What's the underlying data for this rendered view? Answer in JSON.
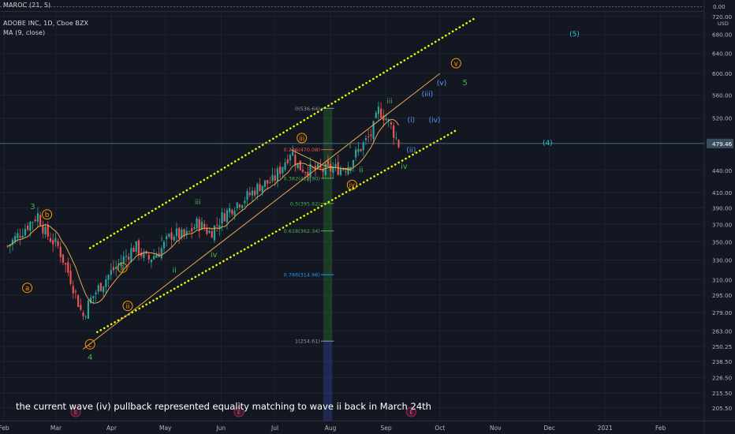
{
  "header": {
    "osc_label": "MAROC (21, 5)",
    "symbol_label": "ADOBE INC, 1D, Cboe BZX",
    "ma_label": "MA (9, close)"
  },
  "osc_pane": {
    "value": "0.00"
  },
  "annotation": "the current wave (iv) pullback represented equality matching to wave ii back in March 24th",
  "colors": {
    "background": "#131722",
    "candle_up": "#26a69a",
    "candle_down": "#ef5350",
    "channel": "#e6ff00",
    "ma": "#e8a54b",
    "wave_green": "#4caf50",
    "wave_orange": "#ff9800",
    "wave_blue": "#5b9cf6",
    "wave_cyan": "#26c6da",
    "price_tag": "#3a4d5c"
  },
  "chart_data": {
    "type": "candlestick",
    "title": "ADOBE INC, 1D, Cboe BZX",
    "price_axis": {
      "currency": "USD",
      "ticks": [
        "720.00",
        "680.00",
        "640.00",
        "600.00",
        "560.00",
        "520.00",
        "480.00",
        "440.00",
        "410.00",
        "390.00",
        "370.00",
        "350.00",
        "330.00",
        "310.00",
        "295.00",
        "279.00",
        "263.00",
        "250.25",
        "238.50",
        "226.50",
        "215.50",
        "205.50"
      ],
      "last_price": "479.46",
      "scale": "log"
    },
    "time_axis": {
      "ticks": [
        "Feb",
        "Mar",
        "Apr",
        "May",
        "Jun",
        "Jul",
        "Aug",
        "Sep",
        "Oct",
        "Nov",
        "Dec",
        "2021",
        "Feb"
      ]
    },
    "close_path": [
      [
        "2020-02-03",
        345
      ],
      [
        "2020-02-10",
        360
      ],
      [
        "2020-02-20",
        382
      ],
      [
        "2020-02-24",
        360
      ],
      [
        "2020-03-02",
        345
      ],
      [
        "2020-03-09",
        312
      ],
      [
        "2020-03-16",
        275
      ],
      [
        "2020-03-20",
        290
      ],
      [
        "2020-03-24",
        300
      ],
      [
        "2020-03-31",
        316
      ],
      [
        "2020-04-07",
        330
      ],
      [
        "2020-04-14",
        345
      ],
      [
        "2020-04-21",
        330
      ],
      [
        "2020-04-28",
        340
      ],
      [
        "2020-05-05",
        360
      ],
      [
        "2020-05-12",
        355
      ],
      [
        "2020-05-19",
        372
      ],
      [
        "2020-05-26",
        360
      ],
      [
        "2020-06-02",
        380
      ],
      [
        "2020-06-09",
        395
      ],
      [
        "2020-06-16",
        405
      ],
      [
        "2020-06-23",
        420
      ],
      [
        "2020-06-30",
        425
      ],
      [
        "2020-07-07",
        455
      ],
      [
        "2020-07-10",
        470
      ],
      [
        "2020-07-14",
        445
      ],
      [
        "2020-07-21",
        440
      ],
      [
        "2020-07-28",
        440
      ],
      [
        "2020-08-03",
        442
      ],
      [
        "2020-08-10",
        445
      ],
      [
        "2020-08-17",
        470
      ],
      [
        "2020-08-24",
        495
      ],
      [
        "2020-08-28",
        535
      ],
      [
        "2020-09-01",
        520
      ],
      [
        "2020-09-04",
        505
      ],
      [
        "2020-09-09",
        472
      ]
    ],
    "channel_upper": [
      [
        "2020-03-20",
        343
      ],
      [
        "2020-10-20",
        715
      ]
    ],
    "channel_lower": [
      [
        "2020-03-24",
        262
      ],
      [
        "2020-10-10",
        500
      ]
    ],
    "impulse_line": [
      [
        "2020-03-16",
        248
      ],
      [
        "2020-10-01",
        600
      ]
    ],
    "fib_levels": [
      {
        "label": "0(536.64)",
        "price": 536.64
      },
      {
        "label": "0.236(470.08)",
        "price": 470.08
      },
      {
        "label": "0.382(428.90)",
        "price": 428.9
      },
      {
        "label": "0.5(395.62)",
        "price": 395.62
      },
      {
        "label": "0.618(362.34)",
        "price": 362.34
      },
      {
        "label": "0.786(314.96)",
        "price": 314.96
      },
      {
        "label": "1(254.61)",
        "price": 254.61
      }
    ],
    "wave_labels": [
      {
        "text": "3",
        "date": "2020-02-17",
        "price": 392,
        "color": "wave_green"
      },
      {
        "text": "b",
        "date": "2020-02-25",
        "price": 382,
        "color": "wave_orange",
        "circle": true
      },
      {
        "text": "a",
        "date": "2020-02-14",
        "price": 302,
        "color": "wave_orange",
        "circle": true
      },
      {
        "text": "c",
        "date": "2020-03-20",
        "price": 252,
        "color": "wave_orange",
        "circle": true
      },
      {
        "text": "4",
        "date": "2020-03-20",
        "price": 242,
        "color": "wave_green"
      },
      {
        "text": "i",
        "date": "2020-04-07",
        "price": 322,
        "color": "wave_orange",
        "circle": true
      },
      {
        "text": "ii",
        "date": "2020-04-10",
        "price": 285,
        "color": "wave_orange",
        "circle": true
      },
      {
        "text": "i",
        "date": "2020-04-29",
        "price": 354,
        "color": "wave_green"
      },
      {
        "text": "ii",
        "date": "2020-05-06",
        "price": 320,
        "color": "wave_green"
      },
      {
        "text": "iii",
        "date": "2020-05-19",
        "price": 398,
        "color": "wave_green"
      },
      {
        "text": "iv",
        "date": "2020-05-28",
        "price": 336,
        "color": "wave_green"
      },
      {
        "text": "iii",
        "date": "2020-07-16",
        "price": 488,
        "color": "wave_orange",
        "circle": true
      },
      {
        "text": "i",
        "date": "2020-08-12",
        "price": 476,
        "color": "wave_green"
      },
      {
        "text": "ii",
        "date": "2020-08-18",
        "price": 441,
        "color": "wave_green"
      },
      {
        "text": "iv",
        "date": "2020-08-13",
        "price": 420,
        "color": "wave_orange",
        "circle": true
      },
      {
        "text": "iii",
        "date": "2020-09-03",
        "price": 550,
        "color": "wave_green"
      },
      {
        "text": "iv",
        "date": "2020-09-11",
        "price": 446,
        "color": "wave_green"
      },
      {
        "text": "(i)",
        "date": "2020-09-15",
        "price": 518,
        "color": "wave_blue"
      },
      {
        "text": "(ii)",
        "date": "2020-09-15",
        "price": 470,
        "color": "wave_blue"
      },
      {
        "text": "(iii)",
        "date": "2020-09-24",
        "price": 563,
        "color": "wave_blue"
      },
      {
        "text": "(iv)",
        "date": "2020-09-28",
        "price": 518,
        "color": "wave_blue"
      },
      {
        "text": "(v)",
        "date": "2020-10-02",
        "price": 583,
        "color": "wave_blue"
      },
      {
        "text": "v",
        "date": "2020-10-10",
        "price": 620,
        "color": "wave_orange",
        "circle": true
      },
      {
        "text": "5",
        "date": "2020-10-15",
        "price": 583,
        "color": "wave_green"
      },
      {
        "text": "(5)",
        "date": "2020-12-15",
        "price": 682,
        "color": "wave_cyan"
      },
      {
        "text": "(4)",
        "date": "2020-11-30",
        "price": 481,
        "color": "wave_cyan"
      }
    ],
    "earnings_markers": [
      "2020-03-12",
      "2020-06-11",
      "2020-09-15"
    ],
    "earnings_label": "E",
    "grid": true
  }
}
